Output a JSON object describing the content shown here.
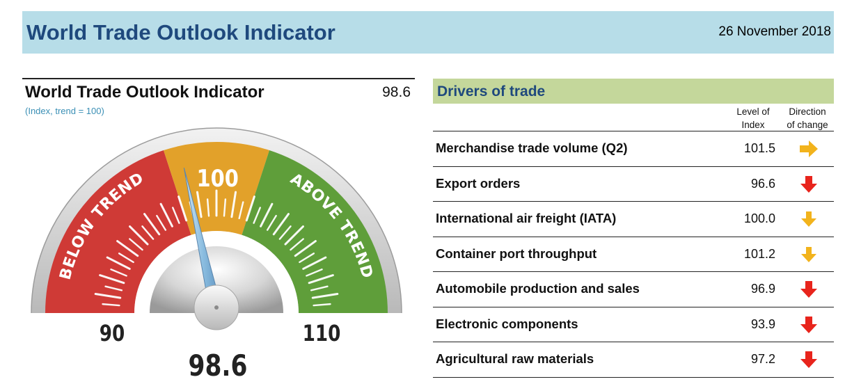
{
  "header": {
    "title": "World Trade Outlook Indicator",
    "date": "26 November 2018"
  },
  "indicator": {
    "title": "World Trade Outlook Indicator",
    "value": "98.6",
    "subtitle": "(Index, trend = 100)"
  },
  "chart_data": {
    "type": "gauge",
    "value": 98.6,
    "value_label": "98.6",
    "min": 90,
    "max": 110,
    "trend": 100,
    "scale_labels": {
      "min": "90",
      "trend": "100",
      "max": "110"
    },
    "zones": [
      {
        "label": "BELOW TREND",
        "from": 90,
        "to": 98,
        "color": "#cf3a36"
      },
      {
        "label": "",
        "from": 98,
        "to": 102,
        "color": "#e2a12a"
      },
      {
        "label": "ABOVE TREND",
        "from": 102,
        "to": 110,
        "color": "#5f9e3a"
      }
    ]
  },
  "drivers": {
    "title": "Drivers of trade",
    "col_level": "Level of\nIndex",
    "col_direction": "Direction\nof change",
    "items": [
      {
        "label": "Merchandise trade volume (Q2)",
        "value": "101.5",
        "direction": "right",
        "color": "#f2b31c"
      },
      {
        "label": "Export orders",
        "value": "96.6",
        "direction": "down",
        "color": "#e8241c"
      },
      {
        "label": "International air freight (IATA)",
        "value": "100.0",
        "direction": "down-right",
        "color": "#f2b31c"
      },
      {
        "label": "Container port throughput",
        "value": "101.2",
        "direction": "down-right",
        "color": "#f2b31c"
      },
      {
        "label": "Automobile production and sales",
        "value": "96.9",
        "direction": "down",
        "color": "#e8241c"
      },
      {
        "label": "Electronic components",
        "value": "93.9",
        "direction": "down",
        "color": "#e8241c"
      },
      {
        "label": "Agricultural raw materials",
        "value": "97.2",
        "direction": "down",
        "color": "#e8241c"
      }
    ]
  }
}
